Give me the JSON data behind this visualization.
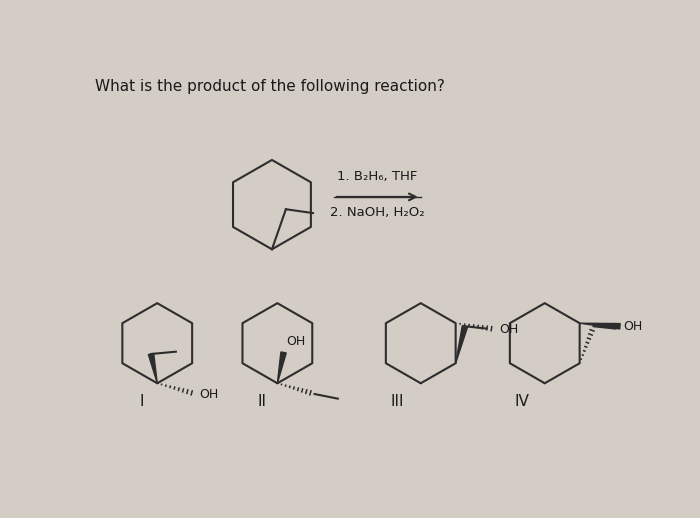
{
  "title": "What is the product of the following reaction?",
  "bg_color": "#d3cdc5",
  "line_color": "#2d2d2d",
  "text_color": "#1a1a1a",
  "reaction_step1": "1. B₂H₆, THF",
  "reaction_step2": "2. NaOH, H₂O₂",
  "labels": [
    "I",
    "II",
    "III",
    "IV"
  ],
  "figsize": [
    7.0,
    5.18
  ],
  "dpi": 100
}
